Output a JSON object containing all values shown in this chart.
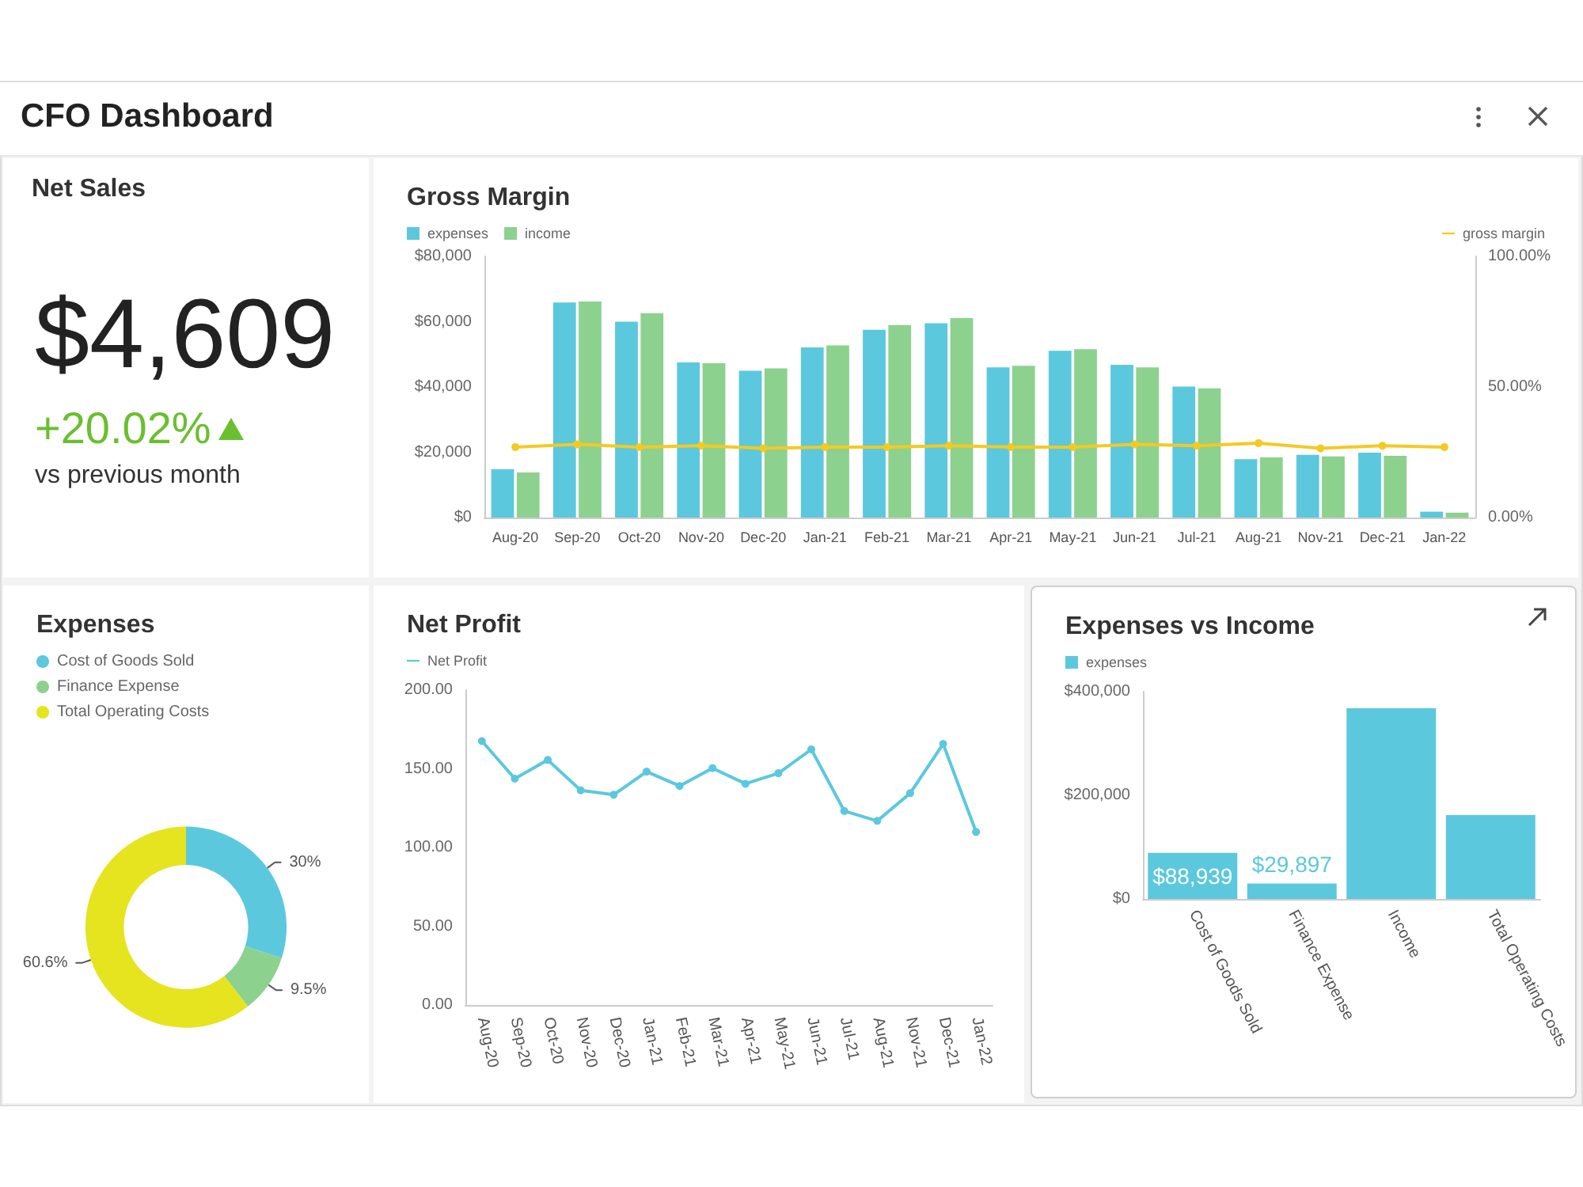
{
  "chart_data": [
    {
      "type": "other",
      "title": "CFO Dashboard"
    },
    {
      "type": "other",
      "title": "Net Sales",
      "annotations": [
        "$4,609",
        "+20.02%",
        "vs previous month"
      ]
    },
    {
      "type": "bar",
      "title": "Gross Margin",
      "categories": [
        "Aug-20",
        "Sep-20",
        "Oct-20",
        "Nov-20",
        "Dec-20",
        "Jan-21",
        "Feb-21",
        "Mar-21",
        "Apr-21",
        "May-21",
        "Jun-21",
        "Jul-21",
        "Aug-21",
        "Nov-21",
        "Dec-21",
        "Jan-22"
      ],
      "series": [
        {
          "name": "expenses",
          "color": "#5bc8de",
          "values": [
            14800,
            65900,
            60000,
            47500,
            45000,
            52100,
            57500,
            59500,
            46000,
            51100,
            46800,
            40100,
            17900,
            19200,
            19900,
            1800
          ]
        },
        {
          "name": "income",
          "color": "#8dd18f",
          "values": [
            13800,
            66200,
            62600,
            47300,
            45700,
            52700,
            59000,
            61100,
            46500,
            51600,
            46000,
            39600,
            18400,
            18700,
            18900,
            1500
          ]
        },
        {
          "name": "gross margin",
          "type": "line",
          "axis": "y2",
          "color": "#f5c922",
          "values": [
            27,
            28,
            27,
            27.5,
            26.5,
            27,
            27,
            27.5,
            27,
            27,
            28,
            27.5,
            28.5,
            26.5,
            27.5,
            27
          ]
        }
      ],
      "ylim": [
        0,
        80000
      ],
      "yticks": [
        {
          "value": 0,
          "label": "$0"
        },
        {
          "value": 20000,
          "label": "$20,000"
        },
        {
          "value": 40000,
          "label": "$40,000"
        },
        {
          "value": 60000,
          "label": "$60,000"
        },
        {
          "value": 80000,
          "label": "$80,000"
        }
      ],
      "y2lim": [
        0,
        100
      ],
      "y2ticks": [
        {
          "value": 0,
          "label": "0.00%"
        },
        {
          "value": 50,
          "label": "50.00%"
        },
        {
          "value": 100,
          "label": "100.00%"
        }
      ],
      "legend": "top",
      "marker": "circle"
    },
    {
      "type": "donut",
      "title": "Expenses",
      "categories": [
        "Cost of Goods Sold",
        "Finance Expense",
        "Total Operating Costs"
      ],
      "values": [
        30,
        9.5,
        60.6
      ],
      "colors": [
        "#5bc8de",
        "#8dd18f",
        "#e5e41e"
      ],
      "value_labels": [
        "30%",
        "9.5%",
        "60.6%"
      ],
      "legend": "top left"
    },
    {
      "type": "line",
      "title": "Net Profit",
      "categories": [
        "Aug-20",
        "Sep-20",
        "Oct-20",
        "Nov-20",
        "Dec-20",
        "Jan-21",
        "Feb-21",
        "Mar-21",
        "Apr-21",
        "May-21",
        "Jun-21",
        "Jul-21",
        "Aug-21",
        "Nov-21",
        "Dec-21",
        "Jan-22"
      ],
      "series": [
        {
          "name": "Net Profit",
          "color": "#5bc8de",
          "values": [
            167.6,
            143.7,
            155.6,
            136.3,
            133.5,
            148.2,
            139.1,
            150.4,
            140.5,
            147.2,
            162.3,
            123.2,
            116.9,
            134.5,
            165.8,
            109.9
          ]
        }
      ],
      "ylim": [
        0,
        200
      ],
      "yticks": [
        {
          "value": 0,
          "label": "0.00"
        },
        {
          "value": 50,
          "label": "50.00"
        },
        {
          "value": 100,
          "label": "100.00"
        },
        {
          "value": 150,
          "label": "150.00"
        },
        {
          "value": 200,
          "label": "200.00"
        }
      ],
      "legend": "top left",
      "marker": "circle"
    },
    {
      "type": "bar",
      "title": "Expenses vs Income",
      "categories": [
        "Cost of Goods Sold",
        "Finance Expense",
        "Income",
        "Total Operating Costs"
      ],
      "series": [
        {
          "name": "expenses",
          "color": "#5bc8de",
          "values": [
            88939,
            29897,
            368000,
            162000
          ],
          "value_labels": [
            "$88,939",
            "$29,897",
            null,
            null
          ]
        }
      ],
      "ylim": [
        0,
        400000
      ],
      "yticks": [
        {
          "value": 0,
          "label": "$0"
        },
        {
          "value": 200000,
          "label": "$200,000"
        },
        {
          "value": 400000,
          "label": "$400,000"
        }
      ],
      "legend": "top left"
    }
  ]
}
